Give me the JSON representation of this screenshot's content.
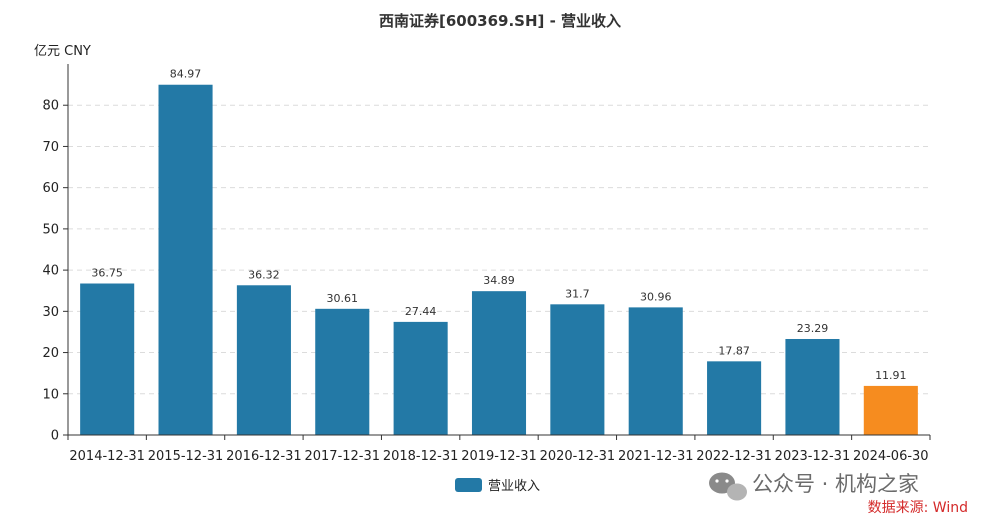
{
  "chart_data": {
    "type": "bar",
    "title": "西南证券[600369.SH] - 营业收入",
    "unit_label": "亿元  CNY",
    "categories": [
      "2014-12-31",
      "2015-12-31",
      "2016-12-31",
      "2017-12-31",
      "2018-12-31",
      "2019-12-31",
      "2020-12-31",
      "2021-12-31",
      "2022-12-31",
      "2023-12-31",
      "2024-06-30"
    ],
    "series": [
      {
        "name": "营业收入",
        "values": [
          36.75,
          84.97,
          36.32,
          30.61,
          27.44,
          34.89,
          31.7,
          30.96,
          17.87,
          23.29,
          11.91
        ]
      }
    ],
    "value_labels": [
      "36.75",
      "84.97",
      "36.32",
      "30.61",
      "27.44",
      "34.89",
      "31.7",
      "30.96",
      "17.87",
      "23.29",
      "11.91"
    ],
    "ylim": [
      0,
      90
    ],
    "yticks": [
      0,
      10,
      20,
      30,
      40,
      50,
      60,
      70,
      80
    ],
    "grid": true,
    "legend_position": "bottom-center",
    "colors": {
      "bar": "#2379a6",
      "highlight_bar": "#f68c1f",
      "highlight_category": "2024-06-30",
      "source": "#d42a2a"
    }
  },
  "watermark": {
    "text": "公众号 · 机构之家",
    "icon": "wechat-icon"
  },
  "source_note": "数据来源: Wind"
}
